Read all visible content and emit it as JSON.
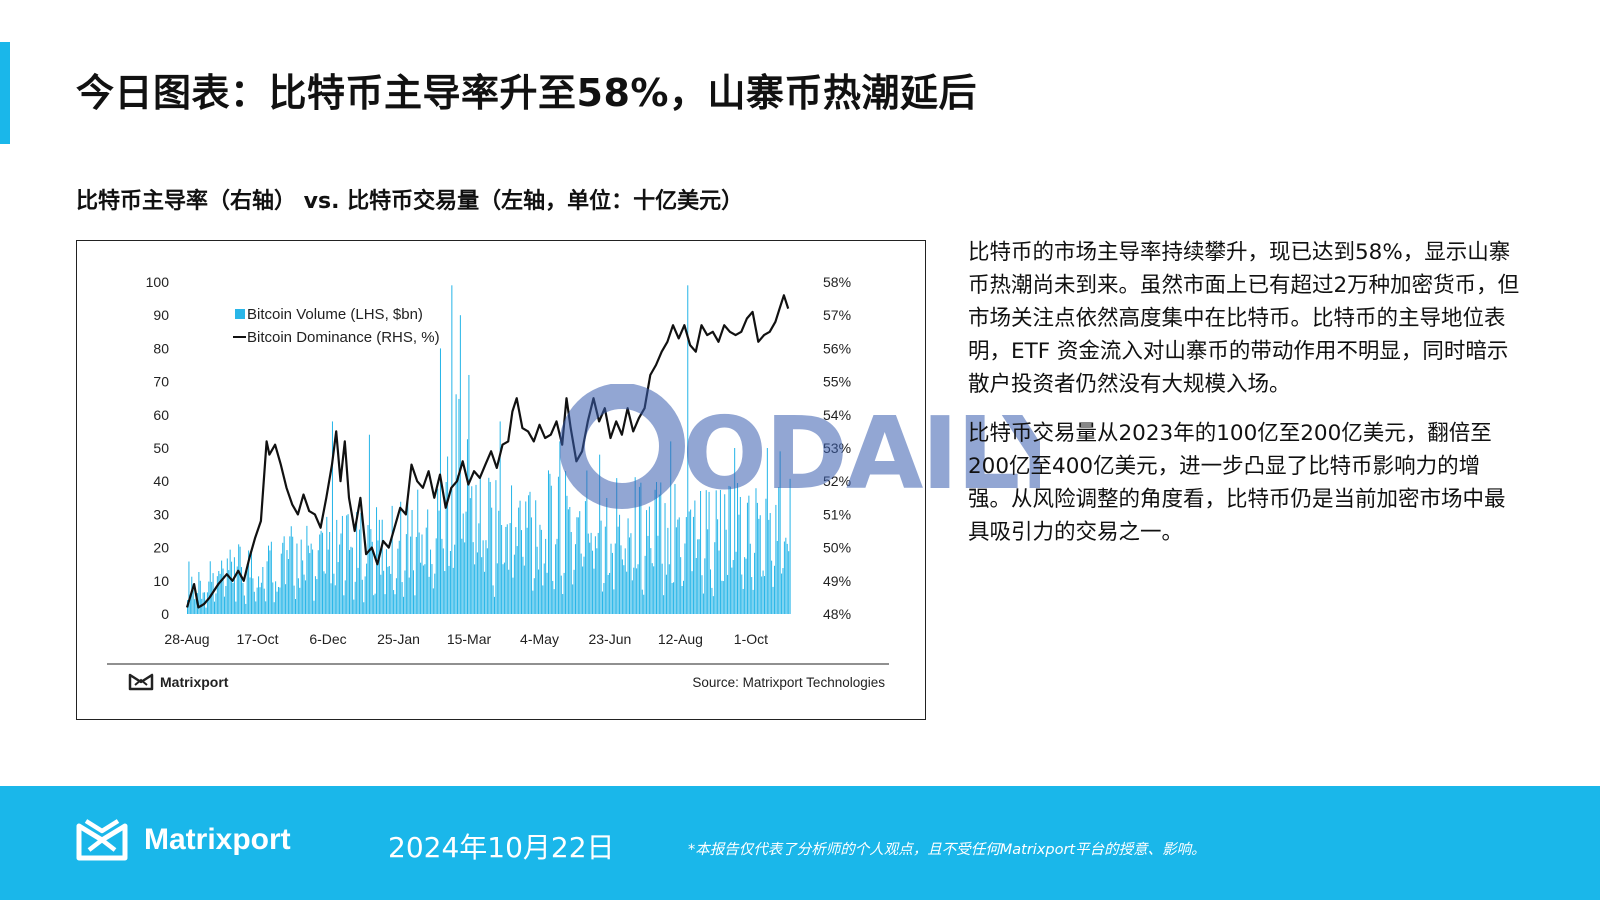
{
  "page": {
    "title": "今日图表：比特币主导率升至58%，山寨币热潮延后",
    "subtitle": "比特币主导率（右轴） vs. 比特币交易量（左轴，单位：十亿美元）",
    "paragraphs": [
      "比特币的市场主导率持续攀升，现已达到58%，显示山寨币热潮尚未到来。虽然市面上已有超过2万种加密货币，但市场关注点依然高度集中在比特币。比特币的主导地位表明，ETF 资金流入对山寨币的带动作用不明显，同时暗示散户投资者仍然没有大规模入场。",
      "比特币交易量从2023年的100亿至200亿美元，翻倍至200亿至400亿美元，进一步凸显了比特币影响力的增强。从风险调整的角度看，比特币仍是当前加密市场中最具吸引力的交易之一。"
    ]
  },
  "chart_box": {
    "brand": "Matrixport",
    "source": "Source: Matrixport Technologies"
  },
  "watermark": {
    "text": "ODAILY"
  },
  "footer": {
    "brand": "Matrixport",
    "date": "2024年10月22日",
    "disclaimer": "*本报告仅代表了分析师的个人观点，且不受任何Matrixport平台的授意、影响。"
  },
  "colors": {
    "accent": "#1ab7ea",
    "volume_bar": "#29b6e8",
    "dominance_line": "#111111",
    "watermark": "#3a5fb0"
  },
  "chart_data": {
    "type": "bar",
    "title": "",
    "x_tick_labels": [
      "28-Aug",
      "17-Oct",
      "6-Dec",
      "25-Jan",
      "15-Mar",
      "4-May",
      "23-Jun",
      "12-Aug",
      "1-Oct"
    ],
    "y_left": {
      "label": "Bitcoin Volume (LHS, $bn)",
      "ylim": [
        0,
        100
      ],
      "ticks": [
        "0",
        "10",
        "20",
        "30",
        "40",
        "50",
        "60",
        "70",
        "80",
        "90",
        "100"
      ]
    },
    "y_right": {
      "label": "Bitcoin Dominance (RHS, %)",
      "ylim": [
        48,
        58
      ],
      "ticks": [
        "48%",
        "49%",
        "50%",
        "51%",
        "52%",
        "53%",
        "54%",
        "55%",
        "56%",
        "57%",
        "58%"
      ]
    },
    "legend": {
      "placement": "top-left",
      "entries": [
        "Bitcoin Volume (LHS, $bn)",
        "Bitcoin Dominance (RHS, %)"
      ]
    },
    "grid": false,
    "series": [
      {
        "name": "Bitcoin Volume (LHS, $bn)",
        "type": "bar",
        "axis": "left",
        "note_days": 425,
        "anchors": [
          [
            0,
            12
          ],
          [
            20,
            12
          ],
          [
            40,
            16
          ],
          [
            60,
            18
          ],
          [
            80,
            20
          ],
          [
            100,
            22
          ],
          [
            120,
            22
          ],
          [
            140,
            24
          ],
          [
            160,
            28
          ],
          [
            180,
            32
          ],
          [
            190,
            55
          ],
          [
            200,
            40
          ],
          [
            210,
            35
          ],
          [
            220,
            30
          ],
          [
            240,
            34
          ],
          [
            260,
            30
          ],
          [
            280,
            34
          ],
          [
            300,
            32
          ],
          [
            320,
            30
          ],
          [
            340,
            32
          ],
          [
            360,
            30
          ],
          [
            380,
            28
          ],
          [
            400,
            30
          ],
          [
            420,
            30
          ]
        ],
        "peaks": [
          [
            33,
            38
          ],
          [
            68,
            52
          ],
          [
            102,
            58
          ],
          [
            128,
            54
          ],
          [
            178,
            80
          ],
          [
            186,
            99
          ],
          [
            192,
            90
          ],
          [
            198,
            72
          ],
          [
            220,
            58
          ],
          [
            262,
            52
          ],
          [
            290,
            48
          ],
          [
            340,
            52
          ],
          [
            352,
            99
          ],
          [
            356,
            65
          ],
          [
            385,
            50
          ],
          [
            408,
            50
          ],
          [
            417,
            49
          ]
        ]
      },
      {
        "name": "Bitcoin Dominance (RHS, %)",
        "type": "line",
        "axis": "right",
        "points": [
          [
            0,
            48.2
          ],
          [
            5,
            48.9
          ],
          [
            8,
            48.2
          ],
          [
            12,
            48.3
          ],
          [
            16,
            48.5
          ],
          [
            22,
            48.9
          ],
          [
            28,
            49.2
          ],
          [
            32,
            49.0
          ],
          [
            36,
            49.3
          ],
          [
            40,
            49.0
          ],
          [
            44,
            49.7
          ],
          [
            48,
            50.3
          ],
          [
            52,
            50.8
          ],
          [
            56,
            53.2
          ],
          [
            58,
            52.8
          ],
          [
            62,
            53.1
          ],
          [
            66,
            52.5
          ],
          [
            70,
            51.8
          ],
          [
            74,
            51.3
          ],
          [
            78,
            51.0
          ],
          [
            82,
            51.6
          ],
          [
            86,
            51.1
          ],
          [
            90,
            51.0
          ],
          [
            94,
            50.6
          ],
          [
            98,
            51.5
          ],
          [
            102,
            52.5
          ],
          [
            105,
            53.5
          ],
          [
            108,
            52.0
          ],
          [
            111,
            53.2
          ],
          [
            114,
            51.5
          ],
          [
            118,
            50.5
          ],
          [
            122,
            51.5
          ],
          [
            126,
            49.8
          ],
          [
            130,
            50.0
          ],
          [
            134,
            49.5
          ],
          [
            138,
            50.2
          ],
          [
            142,
            50.0
          ],
          [
            146,
            50.6
          ],
          [
            150,
            51.2
          ],
          [
            154,
            51.0
          ],
          [
            158,
            52.5
          ],
          [
            162,
            52.0
          ],
          [
            166,
            51.8
          ],
          [
            170,
            52.3
          ],
          [
            174,
            51.5
          ],
          [
            178,
            52.2
          ],
          [
            182,
            51.2
          ],
          [
            186,
            51.8
          ],
          [
            190,
            52.0
          ],
          [
            194,
            52.6
          ],
          [
            198,
            51.9
          ],
          [
            202,
            52.3
          ],
          [
            206,
            52.1
          ],
          [
            210,
            52.5
          ],
          [
            214,
            52.9
          ],
          [
            218,
            52.4
          ],
          [
            222,
            53.1
          ],
          [
            226,
            53.2
          ],
          [
            229,
            54.1
          ],
          [
            232,
            54.5
          ],
          [
            236,
            53.6
          ],
          [
            240,
            53.5
          ],
          [
            244,
            53.2
          ],
          [
            248,
            53.7
          ],
          [
            252,
            53.3
          ],
          [
            256,
            53.4
          ],
          [
            260,
            53.8
          ],
          [
            264,
            53.1
          ],
          [
            267,
            54.5
          ],
          [
            270,
            53.6
          ],
          [
            274,
            52.6
          ],
          [
            278,
            52.9
          ],
          [
            282,
            53.8
          ],
          [
            286,
            54.5
          ],
          [
            290,
            53.8
          ],
          [
            294,
            54.2
          ],
          [
            298,
            53.3
          ],
          [
            302,
            53.8
          ],
          [
            306,
            53.4
          ],
          [
            310,
            54.2
          ],
          [
            314,
            53.5
          ],
          [
            318,
            53.9
          ],
          [
            322,
            54.2
          ],
          [
            326,
            55.2
          ],
          [
            330,
            55.5
          ],
          [
            334,
            55.9
          ],
          [
            338,
            56.2
          ],
          [
            342,
            56.7
          ],
          [
            346,
            56.3
          ],
          [
            350,
            56.7
          ],
          [
            354,
            56.1
          ],
          [
            358,
            55.9
          ],
          [
            362,
            56.7
          ],
          [
            366,
            56.4
          ],
          [
            370,
            56.5
          ],
          [
            374,
            56.2
          ],
          [
            378,
            56.7
          ],
          [
            382,
            56.5
          ],
          [
            386,
            56.4
          ],
          [
            390,
            56.5
          ],
          [
            394,
            56.9
          ],
          [
            398,
            57.1
          ],
          [
            402,
            56.2
          ],
          [
            406,
            56.4
          ],
          [
            410,
            56.5
          ],
          [
            414,
            56.8
          ],
          [
            417,
            57.2
          ],
          [
            420,
            57.6
          ],
          [
            423,
            57.2
          ]
        ]
      }
    ]
  }
}
